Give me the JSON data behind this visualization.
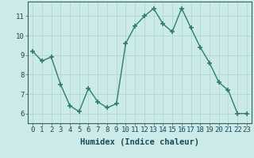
{
  "x": [
    0,
    1,
    2,
    3,
    4,
    5,
    6,
    7,
    8,
    9,
    10,
    11,
    12,
    13,
    14,
    15,
    16,
    17,
    18,
    19,
    20,
    21,
    22,
    23
  ],
  "y": [
    9.2,
    8.7,
    8.9,
    7.5,
    6.4,
    6.1,
    7.3,
    6.6,
    6.3,
    6.5,
    9.6,
    10.5,
    11.0,
    11.4,
    10.6,
    10.2,
    11.4,
    10.4,
    9.4,
    8.6,
    7.6,
    7.2,
    6.0,
    6.0
  ],
  "line_color": "#2e7d6e",
  "marker": "+",
  "marker_size": 4,
  "marker_lw": 1.2,
  "bg_color": "#cceae7",
  "grid_color": "#aad4d0",
  "xlabel": "Humidex (Indice chaleur)",
  "xlim": [
    -0.5,
    23.5
  ],
  "ylim": [
    5.5,
    11.75
  ],
  "yticks": [
    6,
    7,
    8,
    9,
    10,
    11
  ],
  "xticks": [
    0,
    1,
    2,
    3,
    4,
    5,
    6,
    7,
    8,
    9,
    10,
    11,
    12,
    13,
    14,
    15,
    16,
    17,
    18,
    19,
    20,
    21,
    22,
    23
  ],
  "tick_fontsize": 6.5,
  "xlabel_fontsize": 7.5,
  "line_width": 1.0,
  "text_color": "#1a4a5a"
}
